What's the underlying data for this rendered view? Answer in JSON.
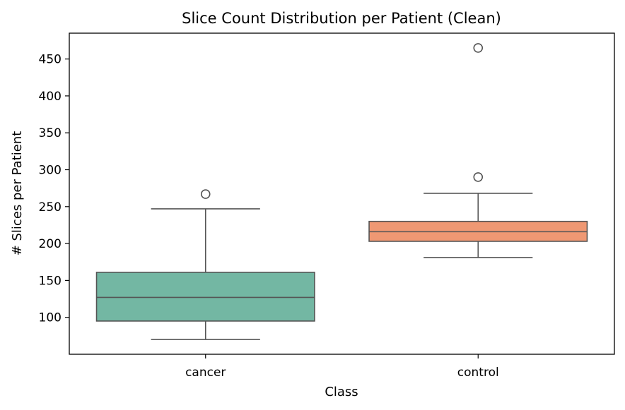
{
  "chart_data": {
    "type": "box",
    "title": "Slice Count Distribution per Patient (Clean)",
    "xlabel": "Class",
    "ylabel": "# Slices per Patient",
    "categories": [
      "cancer",
      "control"
    ],
    "ylim": [
      50,
      485
    ],
    "yticks": [
      100,
      150,
      200,
      250,
      300,
      350,
      400,
      450
    ],
    "ytick_labels": [
      "100",
      "150",
      "200",
      "250",
      "300",
      "350",
      "400",
      "450"
    ],
    "grid": false,
    "series": [
      {
        "category": "cancer",
        "color": "#73b7a3",
        "whisker_low": 70,
        "q1": 95,
        "median": 127,
        "q3": 161,
        "whisker_high": 247,
        "outliers": [
          267
        ]
      },
      {
        "category": "control",
        "color": "#ef9873",
        "whisker_low": 181,
        "q1": 203,
        "median": 216,
        "q3": 230,
        "whisker_high": 268,
        "outliers": [
          290,
          465
        ]
      }
    ],
    "line_color": "#555555"
  }
}
